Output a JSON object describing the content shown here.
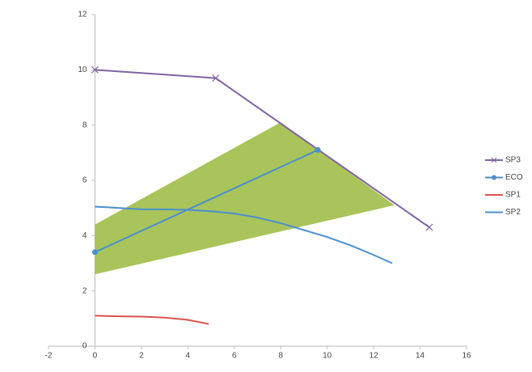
{
  "chart_data": {
    "type": "line",
    "xlim": [
      -2,
      16
    ],
    "xticks": [
      -2,
      0,
      2,
      4,
      6,
      8,
      10,
      12,
      14,
      16
    ],
    "ylim": [
      0,
      12
    ],
    "yticks": [
      0,
      2,
      4,
      6,
      8,
      10,
      12
    ],
    "grid": false,
    "legend": "right",
    "shaded_region": {
      "color": "#a9c45a",
      "x": [
        0,
        8,
        12.9,
        0
      ],
      "y": [
        4.4,
        8.1,
        5.1,
        2.6
      ]
    },
    "series": [
      {
        "name": "SP3",
        "color": "#8064a2",
        "marker": "x",
        "x": [
          0,
          5.2,
          14.4
        ],
        "values": [
          10,
          9.7,
          4.3
        ]
      },
      {
        "name": "ECO",
        "color": "#4a8fd0",
        "marker": "circle",
        "x": [
          0,
          9.6
        ],
        "values": [
          3.4,
          7.1
        ]
      },
      {
        "name": "SP1",
        "color": "#d9534f",
        "marker": "none",
        "x": [
          0,
          1,
          2,
          3,
          4,
          4.9
        ],
        "values": [
          1.1,
          1.08,
          1.07,
          1.03,
          0.95,
          0.8
        ]
      },
      {
        "name": "SP2",
        "color": "#4a8fd0",
        "marker": "none",
        "x": [
          0,
          1,
          2,
          3,
          4,
          5,
          6,
          7,
          8,
          9,
          10,
          11,
          12,
          12.8
        ],
        "values": [
          5.05,
          5.0,
          4.95,
          4.95,
          4.93,
          4.88,
          4.8,
          4.65,
          4.45,
          4.2,
          3.95,
          3.65,
          3.3,
          3.0
        ]
      }
    ]
  }
}
